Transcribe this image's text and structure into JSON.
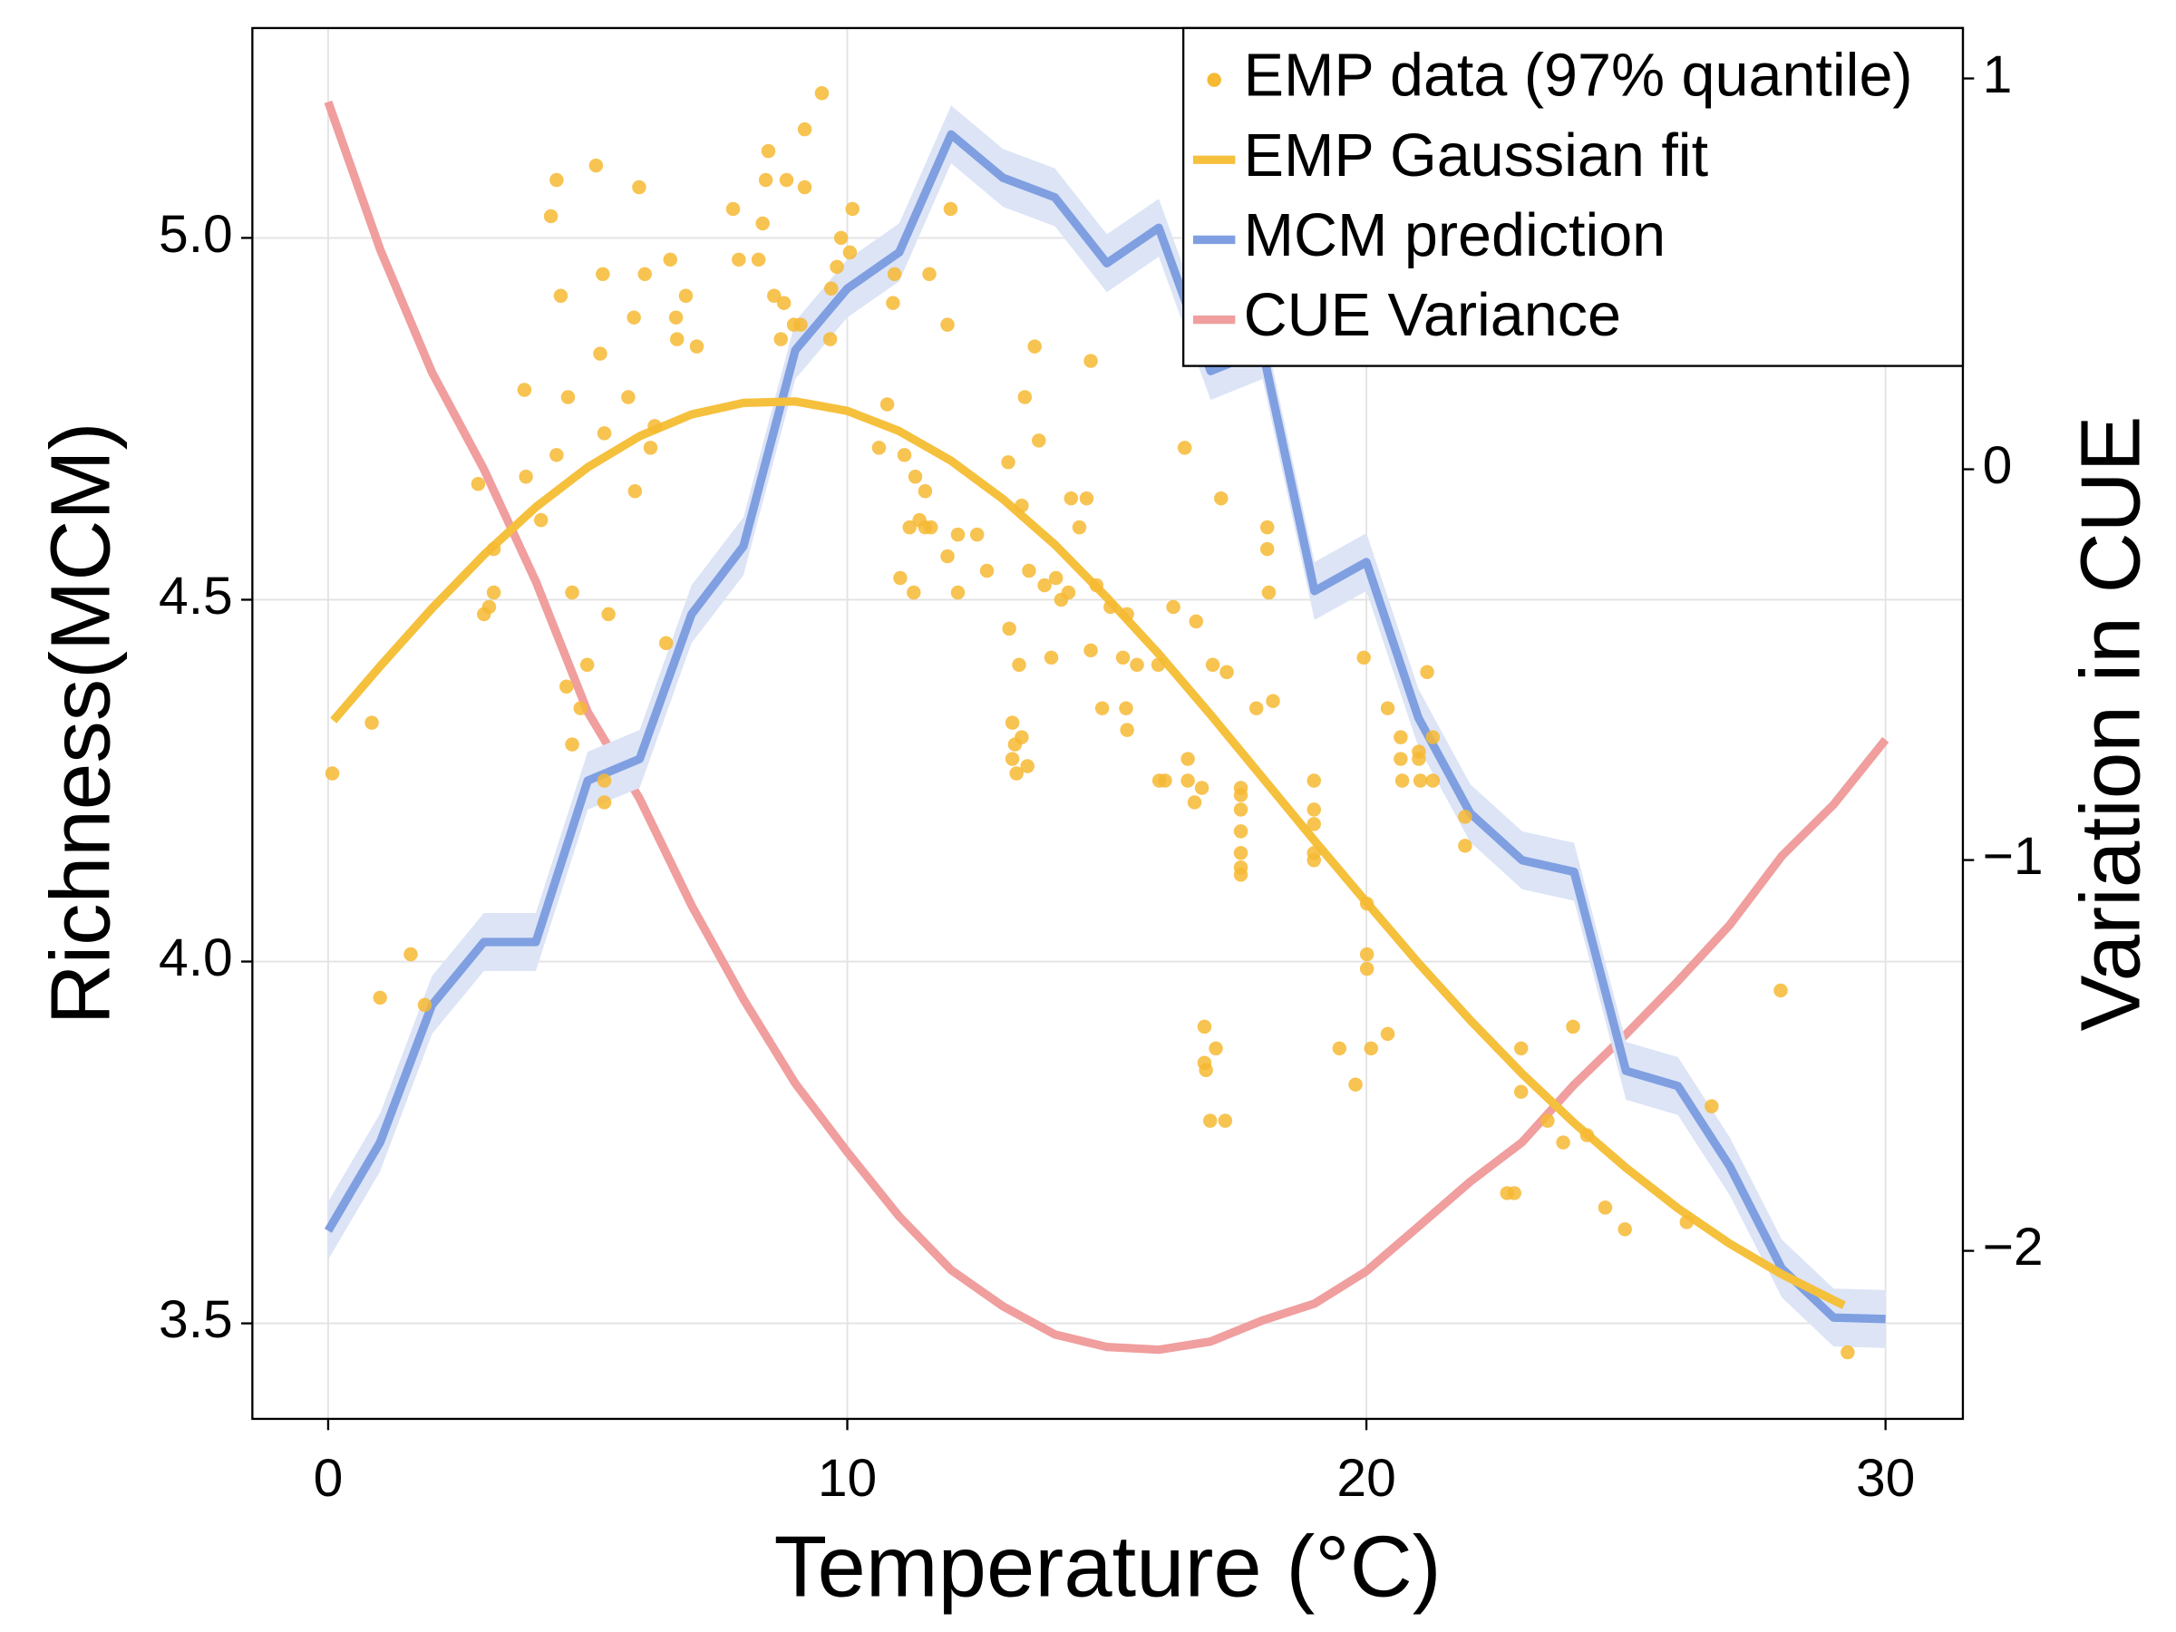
{
  "chart_data": {
    "type": "combo",
    "x_label": "Temperature (°C)",
    "y_label": "Richness(MCM)",
    "y2_label": "Variation in CUE",
    "xlim": [
      -1.46,
      31.49
    ],
    "xticks": [
      0,
      10,
      20,
      30
    ],
    "ylim": [
      3.368,
      5.29
    ],
    "yticks": [
      {
        "value": 3.5,
        "label": "3.5"
      },
      {
        "value": 4.0,
        "label": "4.0"
      },
      {
        "value": 4.5,
        "label": "4.5"
      },
      {
        "value": 5.0,
        "label": "5.0"
      }
    ],
    "y2lim": [
      -2.43,
      1.129
    ],
    "y2ticks": [
      {
        "value": -2,
        "label": "−2"
      },
      {
        "value": -1,
        "label": "−1"
      },
      0,
      1
    ],
    "grid": true,
    "legend": "top-right",
    "series": [
      {
        "name": "EMP data (97% quantile)",
        "type": "scatter",
        "color": "#f6b933",
        "x": [
          0.08,
          0.84,
          1.59,
          1.0,
          1.86,
          2.89,
          3.0,
          3.1,
          3.19,
          3.19,
          3.78,
          3.81,
          4.1,
          4.29,
          4.4,
          4.4,
          4.48,
          4.59,
          4.62,
          4.7,
          4.7,
          4.86,
          4.99,
          5.16,
          5.24,
          5.29,
          5.32,
          5.32,
          5.32,
          5.4,
          5.78,
          5.89,
          5.91,
          5.99,
          6.1,
          6.21,
          6.29,
          6.51,
          6.59,
          6.7,
          6.72,
          6.89,
          7.1,
          7.8,
          7.91,
          8.29,
          8.37,
          8.43,
          8.48,
          8.59,
          8.72,
          8.78,
          8.83,
          8.97,
          9.1,
          9.18,
          9.18,
          9.51,
          9.67,
          9.69,
          9.8,
          9.88,
          10.05,
          10.1,
          10.61,
          10.77,
          10.88,
          10.91,
          11.02,
          11.1,
          11.2,
          11.28,
          11.31,
          11.39,
          11.5,
          11.5,
          11.58,
          11.61,
          11.93,
          11.93,
          11.99,
          12.13,
          12.13,
          12.5,
          12.69,
          13.1,
          13.12,
          13.18,
          13.18,
          13.23,
          13.26,
          13.31,
          13.36,
          13.36,
          13.42,
          13.47,
          13.5,
          13.61,
          13.69,
          13.8,
          13.93,
          14.02,
          14.12,
          14.26,
          14.31,
          14.47,
          14.61,
          14.69,
          14.69,
          14.8,
          14.91,
          15.07,
          15.31,
          15.37,
          15.39,
          15.39,
          15.58,
          15.99,
          16.01,
          16.12,
          16.28,
          16.5,
          16.56,
          16.56,
          16.69,
          16.72,
          16.83,
          16.88,
          16.88,
          16.91,
          16.99,
          17.04,
          17.1,
          17.2,
          17.28,
          17.31,
          17.58,
          17.58,
          17.58,
          17.58,
          17.58,
          17.58,
          17.58,
          17.88,
          18.09,
          18.09,
          18.12,
          18.2,
          18.99,
          18.99,
          18.99,
          18.99,
          18.99,
          19.48,
          19.79,
          19.95,
          20.01,
          20.01,
          20.01,
          20.09,
          20.41,
          20.41,
          20.66,
          20.66,
          20.69,
          21.01,
          21.01,
          21.04,
          21.17,
          21.28,
          21.28,
          21.9,
          21.9,
          22.71,
          22.85,
          22.98,
          22.98,
          23.49,
          23.79,
          23.98,
          24.25,
          24.6,
          24.98,
          26.17,
          26.65,
          27.98,
          29.27
        ],
        "values": [
          4.26,
          4.33,
          4.01,
          3.95,
          3.94,
          4.66,
          4.48,
          4.49,
          4.51,
          4.57,
          4.79,
          4.67,
          4.61,
          5.03,
          5.08,
          4.7,
          4.92,
          4.38,
          4.78,
          4.51,
          4.3,
          4.35,
          4.41,
          5.1,
          4.84,
          4.95,
          4.73,
          4.25,
          4.22,
          4.48,
          4.78,
          4.89,
          4.65,
          5.07,
          4.95,
          4.71,
          4.74,
          4.44,
          4.97,
          4.89,
          4.86,
          4.92,
          4.85,
          5.04,
          4.97,
          4.97,
          5.02,
          5.08,
          5.12,
          4.92,
          4.86,
          4.91,
          5.08,
          4.88,
          4.88,
          5.07,
          5.15,
          5.2,
          4.86,
          4.93,
          4.96,
          5.0,
          4.98,
          5.04,
          4.71,
          4.77,
          4.91,
          4.95,
          4.53,
          4.7,
          4.6,
          4.51,
          4.67,
          4.61,
          4.65,
          4.6,
          4.95,
          4.6,
          4.56,
          4.88,
          5.04,
          4.59,
          4.51,
          4.59,
          4.54,
          4.69,
          4.46,
          4.33,
          4.28,
          4.3,
          4.26,
          4.41,
          4.31,
          4.63,
          4.78,
          4.27,
          4.54,
          4.85,
          4.72,
          4.52,
          4.42,
          4.53,
          4.5,
          4.51,
          4.64,
          4.6,
          4.64,
          4.83,
          4.43,
          4.52,
          4.35,
          4.49,
          4.42,
          4.35,
          4.32,
          4.48,
          4.41,
          4.41,
          4.25,
          4.25,
          4.49,
          4.71,
          4.28,
          4.25,
          4.22,
          4.47,
          4.24,
          3.91,
          3.86,
          3.85,
          3.78,
          4.41,
          3.88,
          4.64,
          3.78,
          4.4,
          4.24,
          4.21,
          4.18,
          4.15,
          4.13,
          4.12,
          4.23,
          4.35,
          4.6,
          4.57,
          4.51,
          4.36,
          4.25,
          4.21,
          4.19,
          4.14,
          4.15,
          3.88,
          3.83,
          4.42,
          4.08,
          4.01,
          3.99,
          3.88,
          3.9,
          4.35,
          4.31,
          4.28,
          4.25,
          4.29,
          4.28,
          4.25,
          4.4,
          4.31,
          4.25,
          4.2,
          4.16,
          3.68,
          3.68,
          3.88,
          3.82,
          3.78,
          3.75,
          3.91,
          3.76,
          3.66,
          3.63,
          3.64,
          3.8,
          3.96,
          3.46
        ]
      },
      {
        "name": "EMP Gaussian fit",
        "type": "line",
        "color": "#f5c03c",
        "x": [
          0.1,
          1,
          2,
          3,
          4,
          5,
          6,
          7,
          8,
          9,
          10,
          11,
          12,
          13,
          14,
          15,
          16,
          17,
          18,
          19,
          20,
          21,
          22,
          23,
          24,
          25,
          26,
          27,
          28,
          29,
          29.2
        ],
        "values": [
          4.333,
          4.408,
          4.488,
          4.562,
          4.628,
          4.683,
          4.726,
          4.756,
          4.772,
          4.774,
          4.761,
          4.733,
          4.692,
          4.639,
          4.576,
          4.503,
          4.425,
          4.341,
          4.254,
          4.167,
          4.082,
          3.998,
          3.919,
          3.845,
          3.777,
          3.715,
          3.659,
          3.61,
          3.568,
          3.532,
          3.525
        ]
      },
      {
        "name": "MCM prediction",
        "type": "line",
        "color": "#7f9fe1",
        "band_color": "#dce4f6",
        "x": [
          0,
          1,
          2,
          3,
          4,
          5,
          6,
          7,
          8,
          9,
          10,
          11,
          12,
          13,
          14,
          15,
          16,
          17,
          18,
          19,
          20,
          21,
          22,
          23,
          24,
          25,
          26,
          27,
          28,
          29,
          30
        ],
        "values": [
          3.628,
          3.75,
          3.94,
          4.027,
          4.027,
          4.25,
          4.28,
          4.48,
          4.574,
          4.845,
          4.93,
          4.98,
          5.143,
          5.083,
          5.056,
          4.965,
          5.014,
          4.816,
          4.845,
          4.512,
          4.552,
          4.337,
          4.205,
          4.14,
          4.124,
          3.849,
          3.828,
          3.717,
          3.576,
          3.508,
          3.506
        ],
        "lower": [
          3.588,
          3.71,
          3.9,
          3.987,
          3.987,
          4.21,
          4.24,
          4.44,
          4.534,
          4.805,
          4.89,
          4.94,
          5.103,
          5.043,
          5.016,
          4.925,
          4.974,
          4.776,
          4.805,
          4.472,
          4.512,
          4.297,
          4.165,
          4.1,
          4.084,
          3.809,
          3.788,
          3.677,
          3.536,
          3.468,
          3.466
        ],
        "upper": [
          3.668,
          3.79,
          3.98,
          4.067,
          4.067,
          4.29,
          4.32,
          4.52,
          4.614,
          4.885,
          4.97,
          5.02,
          5.183,
          5.123,
          5.096,
          5.005,
          5.054,
          4.856,
          4.885,
          4.552,
          4.592,
          4.377,
          4.245,
          4.18,
          4.164,
          3.889,
          3.868,
          3.757,
          3.616,
          3.548,
          3.546
        ]
      },
      {
        "name": "CUE Variance",
        "type": "line",
        "axis": "y2",
        "color": "#f09e9e",
        "x": [
          0,
          1,
          2,
          3,
          4,
          5,
          6,
          7,
          8,
          9,
          10,
          11,
          12,
          13,
          14,
          15,
          16,
          17,
          18,
          19,
          20,
          21,
          22,
          23,
          24,
          25,
          26,
          27,
          28,
          29,
          30
        ],
        "values": [
          0.94,
          0.563,
          0.248,
          0,
          -0.287,
          -0.621,
          -0.843,
          -1.116,
          -1.356,
          -1.572,
          -1.747,
          -1.912,
          -2.049,
          -2.142,
          -2.214,
          -2.246,
          -2.253,
          -2.232,
          -2.178,
          -2.135,
          -2.052,
          -1.938,
          -1.823,
          -1.722,
          -1.575,
          -1.446,
          -1.31,
          -1.166,
          -0.99,
          -0.858,
          -0.692
        ]
      }
    ]
  }
}
